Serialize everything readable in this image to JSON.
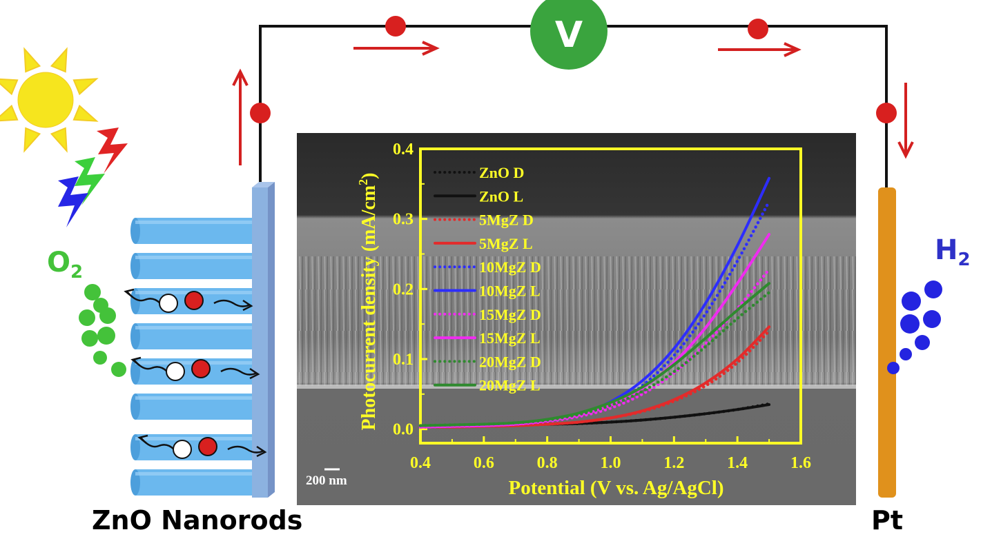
{
  "labels": {
    "electrode_left": "ZnO Nanorods",
    "electrode_right": "Pt",
    "voltmeter": "V",
    "gas_left": {
      "base": "O",
      "sub": "2"
    },
    "gas_right": {
      "base": "H",
      "sub": "2"
    },
    "scale_bar": "200 nm"
  },
  "colors": {
    "sun": "#f6e51e",
    "sun_rays": "#f3cc24",
    "wire": "#111111",
    "node": "#d8201f",
    "arrow": "#d32020",
    "voltmeter": "#3aa43e",
    "nanorod": "#6bb8ee",
    "electrode_plate": "#8cb2e0",
    "pt_electrode": "#e0911c",
    "o2_bubbles": "#44c23a",
    "h2_bubbles": "#2424e0",
    "chart_frame": "#ffff26"
  },
  "chart_data": {
    "type": "line",
    "xlabel": "Potential (V vs. Ag/AgCl)",
    "ylabel": "Photocurrent density (mA/cm2)",
    "ylabel_display": {
      "base": "Photocurrent density (mA/cm",
      "sup": "2",
      "end": ")"
    },
    "xlim": [
      0.4,
      1.6
    ],
    "ylim": [
      -0.02,
      0.4
    ],
    "xticks": [
      "0.4",
      "0.6",
      "0.8",
      "1.0",
      "1.2",
      "1.4",
      "1.6"
    ],
    "yticks": [
      "0.0",
      "0.1",
      "0.2",
      "0.3",
      "0.4"
    ],
    "legend_position": "top-left",
    "x": [
      0.4,
      0.5,
      0.6,
      0.7,
      0.8,
      0.9,
      1.0,
      1.1,
      1.2,
      1.3,
      1.4,
      1.5
    ],
    "series": [
      {
        "name": "ZnO D",
        "color": "#111111",
        "style": "dotted",
        "values": [
          0.003,
          0.004,
          0.005,
          0.006,
          0.007,
          0.008,
          0.01,
          0.013,
          0.017,
          0.022,
          0.028,
          0.036
        ]
      },
      {
        "name": "ZnO L",
        "color": "#111111",
        "style": "solid",
        "values": [
          0.003,
          0.004,
          0.005,
          0.006,
          0.007,
          0.008,
          0.01,
          0.013,
          0.017,
          0.022,
          0.028,
          0.035
        ]
      },
      {
        "name": "5MgZ D",
        "color": "#e32b2b",
        "style": "dotted",
        "values": [
          0.003,
          0.003,
          0.004,
          0.005,
          0.007,
          0.01,
          0.016,
          0.025,
          0.04,
          0.062,
          0.095,
          0.14
        ]
      },
      {
        "name": "5MgZ L",
        "color": "#e32b2b",
        "style": "solid",
        "values": [
          0.003,
          0.003,
          0.004,
          0.005,
          0.007,
          0.01,
          0.016,
          0.026,
          0.042,
          0.066,
          0.1,
          0.146
        ]
      },
      {
        "name": "10MgZ D",
        "color": "#2d2dff",
        "style": "dotted",
        "values": [
          0.003,
          0.004,
          0.005,
          0.007,
          0.011,
          0.019,
          0.035,
          0.062,
          0.105,
          0.165,
          0.24,
          0.325
        ]
      },
      {
        "name": "10MgZ L",
        "color": "#2d2dff",
        "style": "solid",
        "values": [
          0.003,
          0.004,
          0.005,
          0.007,
          0.012,
          0.021,
          0.039,
          0.069,
          0.115,
          0.18,
          0.262,
          0.358
        ]
      },
      {
        "name": "15MgZ D",
        "color": "#ef2cef",
        "style": "dotted",
        "values": [
          0.003,
          0.004,
          0.005,
          0.007,
          0.011,
          0.018,
          0.03,
          0.05,
          0.08,
          0.122,
          0.172,
          0.228
        ]
      },
      {
        "name": "15MgZ L",
        "color": "#ef2cef",
        "style": "solid",
        "values": [
          0.003,
          0.004,
          0.005,
          0.007,
          0.012,
          0.02,
          0.034,
          0.058,
          0.095,
          0.145,
          0.208,
          0.278
        ]
      },
      {
        "name": "20MgZ D",
        "color": "#2f8a2f",
        "style": "dotted",
        "values": [
          0.005,
          0.006,
          0.007,
          0.009,
          0.013,
          0.021,
          0.034,
          0.054,
          0.082,
          0.118,
          0.158,
          0.195
        ]
      },
      {
        "name": "20MgZ L",
        "color": "#2f8a2f",
        "style": "solid",
        "values": [
          0.005,
          0.006,
          0.007,
          0.009,
          0.014,
          0.023,
          0.038,
          0.06,
          0.092,
          0.13,
          0.17,
          0.208
        ]
      }
    ]
  }
}
